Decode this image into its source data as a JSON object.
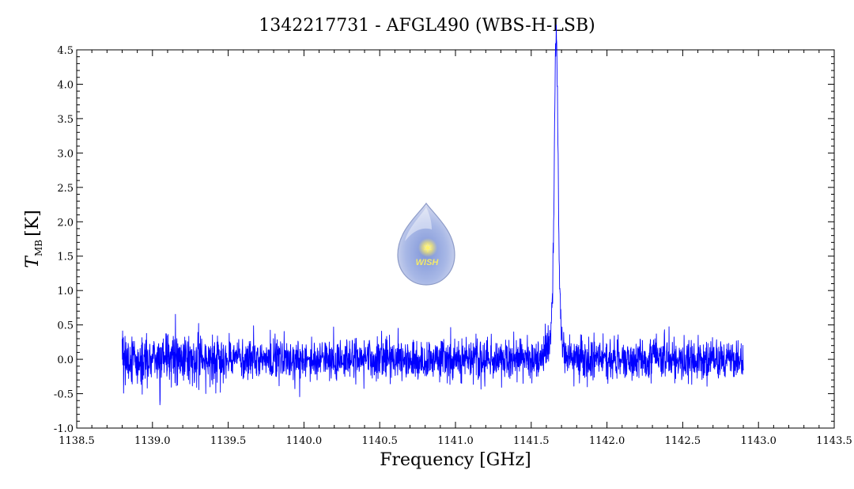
{
  "chart_data": {
    "type": "line",
    "title": "1342217731 - AFGL490 (WBS-H-LSB)",
    "xlabel": "Frequency [GHz]",
    "ylabel": {
      "symbol": "T",
      "subscript": "MB",
      "unit": "[K]"
    },
    "xlim": [
      1138.5,
      1143.5
    ],
    "ylim": [
      -1.0,
      4.5
    ],
    "x_ticks": [
      "1138.5",
      "1139.0",
      "1139.5",
      "1140.0",
      "1140.5",
      "1141.0",
      "1141.5",
      "1142.0",
      "1142.5",
      "1143.0",
      "1143.5"
    ],
    "y_ticks": [
      "-1.0",
      "-0.5",
      "0.0",
      "0.5",
      "1.0",
      "1.5",
      "2.0",
      "2.5",
      "3.0",
      "3.5",
      "4.0",
      "4.5"
    ],
    "grid": false,
    "series": [
      {
        "color": "#0000ff",
        "x_range": [
          1138.8,
          1142.9
        ],
        "noise_rms_K": 0.15,
        "line_center_GHz": 1141.665,
        "line_peak_K": 4.13,
        "line_width_GHz": 0.012,
        "broad_wing_peak_K": 0.55,
        "broad_wing_width_GHz": 0.035
      }
    ],
    "logo": {
      "text": "WISH"
    }
  }
}
